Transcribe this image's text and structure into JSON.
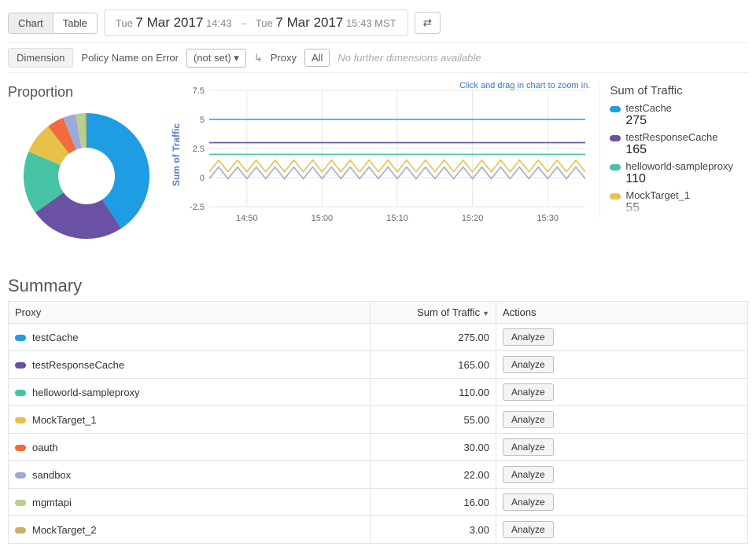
{
  "toolbar": {
    "view_tabs": [
      "Chart",
      "Table"
    ],
    "active_tab": 0,
    "date_range": {
      "from_prefix": "Tue",
      "from_day": "7 Mar 2017",
      "from_time": "14:43",
      "to_prefix": "Tue",
      "to_day": "7 Mar 2017",
      "to_time": "15:43 MST",
      "separator": "–"
    }
  },
  "dimension_bar": {
    "label": "Dimension",
    "policy_label": "Policy Name on Error",
    "policy_value": "(not set)",
    "proxy_label": "Proxy",
    "all_label": "All",
    "hint": "No further dimensions available"
  },
  "charts": {
    "proportion_title": "Proportion",
    "zoom_hint": "Click and drag in chart to zoom in.",
    "y_axis_label": "Sum of Traffic",
    "y_ticks": [
      -2.5,
      0,
      2.5,
      5,
      7.5
    ],
    "ylim": [
      -2.5,
      7.5
    ],
    "x_ticks": [
      "14:50",
      "15:00",
      "15:10",
      "15:20",
      "15:30"
    ],
    "grid_color": "#e6e6e6",
    "axis_color": "#c8c8c8",
    "tick_font_size": 11,
    "line_series": [
      {
        "name": "testCache",
        "color": "#1e9de3",
        "value": 5.0,
        "style": "flat"
      },
      {
        "name": "testResponseCache",
        "color": "#6a51a3",
        "value": 3.0,
        "style": "flat"
      },
      {
        "name": "helloworld-sampleproxy",
        "color": "#46c2a5",
        "value": 2.0,
        "style": "flat"
      },
      {
        "name": "MockTarget_1",
        "color": "#e7c24b",
        "value": 1.0,
        "style": "zig",
        "amp": 1.0
      },
      {
        "name": "sandbox",
        "color": "#9fa8da",
        "value": 0.4,
        "style": "zig",
        "amp": 1.0
      }
    ],
    "legend_title": "Sum of Traffic",
    "legend": [
      {
        "name": "testCache",
        "value": "275",
        "color": "#1e9de3"
      },
      {
        "name": "testResponseCache",
        "value": "165",
        "color": "#6a51a3"
      },
      {
        "name": "helloworld-sampleproxy",
        "value": "110",
        "color": "#46c2a5"
      },
      {
        "name": "MockTarget_1",
        "value": "55",
        "color": "#e7c24b"
      }
    ],
    "donut": {
      "inner_ratio": 0.45,
      "background": "#ffffff",
      "slices": [
        {
          "name": "testCache",
          "value": 275,
          "color": "#1e9de3"
        },
        {
          "name": "testResponseCache",
          "value": 165,
          "color": "#6a51a3"
        },
        {
          "name": "helloworld-sampleproxy",
          "value": 110,
          "color": "#46c2a5"
        },
        {
          "name": "MockTarget_1",
          "value": 55,
          "color": "#e7c24b"
        },
        {
          "name": "oauth",
          "value": 30,
          "color": "#f26b3a"
        },
        {
          "name": "sandbox",
          "value": 22,
          "color": "#9fa8da"
        },
        {
          "name": "mgmtapi",
          "value": 16,
          "color": "#b7cf8f"
        },
        {
          "name": "MockTarget_2",
          "value": 3,
          "color": "#c9b061"
        }
      ]
    }
  },
  "summary": {
    "title": "Summary",
    "columns": {
      "proxy": "Proxy",
      "sum": "Sum of Traffic",
      "actions": "Actions"
    },
    "sort_desc": true,
    "analyze_label": "Analyze",
    "rows": [
      {
        "name": "testCache",
        "value": "275.00",
        "color": "#1e9de3"
      },
      {
        "name": "testResponseCache",
        "value": "165.00",
        "color": "#6a51a3"
      },
      {
        "name": "helloworld-sampleproxy",
        "value": "110.00",
        "color": "#46c2a5"
      },
      {
        "name": "MockTarget_1",
        "value": "55.00",
        "color": "#e7c24b"
      },
      {
        "name": "oauth",
        "value": "30.00",
        "color": "#f26b3a"
      },
      {
        "name": "sandbox",
        "value": "22.00",
        "color": "#9fa8da"
      },
      {
        "name": "mgmtapi",
        "value": "16.00",
        "color": "#b7cf8f"
      },
      {
        "name": "MockTarget_2",
        "value": "3.00",
        "color": "#c9b061"
      }
    ]
  }
}
